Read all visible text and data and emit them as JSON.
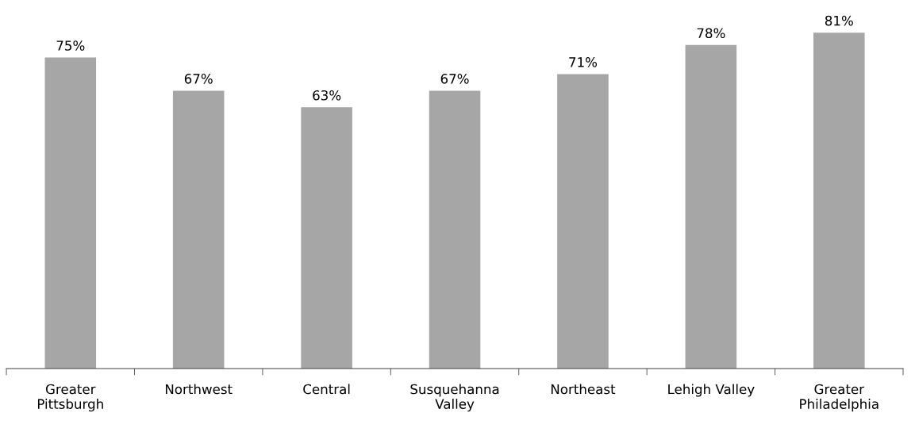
{
  "chart_data": {
    "type": "bar",
    "categories": [
      "Greater\nPittsburgh",
      "Northwest",
      "Central",
      "Susquehanna\nValley",
      "Northeast",
      "Lehigh Valley",
      "Greater\nPhiladelphia"
    ],
    "values": [
      75,
      67,
      63,
      67,
      71,
      78,
      81
    ],
    "value_labels": [
      "75%",
      "67%",
      "63%",
      "67%",
      "71%",
      "78%",
      "81%"
    ],
    "color": "#a6a6a6",
    "tick_labels": "x",
    "grid": false,
    "legend": false
  }
}
